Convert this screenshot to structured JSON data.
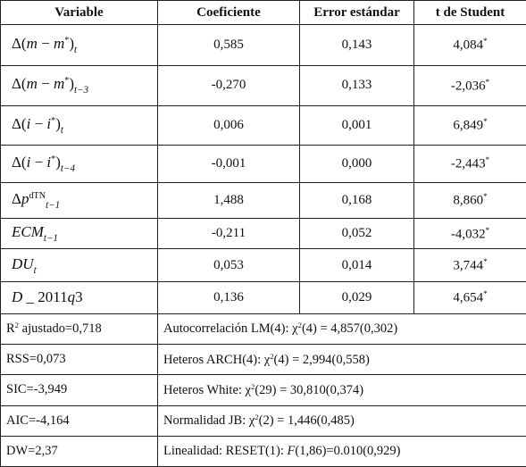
{
  "table": {
    "header": [
      "Variable",
      "Coeficiente",
      "Error estándar",
      "t de Student"
    ],
    "rows": [
      {
        "variable": [
          {
            "t": "Δ("
          },
          {
            "i": "m"
          },
          {
            "t": " − "
          },
          {
            "i": "m"
          },
          {
            "sup": "*"
          },
          {
            "t": ")"
          },
          {
            "sub": "t"
          }
        ],
        "coef": "0,585",
        "se": "0,143",
        "t": "4,084",
        "mark": "*"
      },
      {
        "variable": [
          {
            "t": "Δ("
          },
          {
            "i": "m"
          },
          {
            "t": " − "
          },
          {
            "i": "m"
          },
          {
            "sup": "*"
          },
          {
            "t": ")"
          },
          {
            "sub": "t−3"
          }
        ],
        "coef": "-0,270",
        "se": "0,133",
        "t": "-2,036",
        "mark": "*"
      },
      {
        "variable": [
          {
            "t": "Δ("
          },
          {
            "i": "i"
          },
          {
            "t": " − "
          },
          {
            "i": "i"
          },
          {
            "sup": "*"
          },
          {
            "t": ")"
          },
          {
            "sub": "t"
          }
        ],
        "coef": "0,006",
        "se": "0,001",
        "t": "6,849",
        "mark": "*"
      },
      {
        "variable": [
          {
            "t": "Δ("
          },
          {
            "i": "i"
          },
          {
            "t": " − "
          },
          {
            "i": "i"
          },
          {
            "sup": "*"
          },
          {
            "t": ")"
          },
          {
            "sub": "t−4"
          }
        ],
        "coef": "-0,001",
        "se": "0,000",
        "t": "-2,443",
        "mark": "*"
      },
      {
        "variable": [
          {
            "t": "Δ"
          },
          {
            "i": "p"
          },
          {
            "sup": "dTN"
          },
          {
            "sub": "t−1"
          }
        ],
        "coef": "1,488",
        "se": "0,168",
        "t": "8,860",
        "mark": "*"
      },
      {
        "variable": [
          {
            "i": "ECM"
          },
          {
            "sub": "t−1"
          }
        ],
        "coef": "-0,211",
        "se": "0,052",
        "t": "-4,032",
        "mark": "*"
      },
      {
        "variable": [
          {
            "i": "DU"
          },
          {
            "sub": "t"
          }
        ],
        "coef": "0,053",
        "se": "0,014",
        "t": "3,744",
        "mark": "*"
      },
      {
        "variable": [
          {
            "i": "D"
          },
          {
            "t": " _ 2011"
          },
          {
            "i": "q"
          },
          {
            "t": "3"
          }
        ],
        "coef": "0,136",
        "se": "0,029",
        "t": "4,654",
        "mark": "*"
      }
    ],
    "stats": [
      {
        "left": [
          {
            "t": "R"
          },
          {
            "sup": "2"
          },
          {
            "t": " ajustado=0,718"
          }
        ],
        "right": [
          {
            "t": "Autocorrelación LM(4):  χ"
          },
          {
            "sup": "2"
          },
          {
            "t": "(4) = 4,857(0,302)"
          }
        ]
      },
      {
        "left": [
          {
            "t": "RSS=0,073"
          }
        ],
        "right": [
          {
            "t": "Heteros ARCH(4): χ"
          },
          {
            "sup": "2"
          },
          {
            "t": "(4) = 2,994(0,558)"
          }
        ]
      },
      {
        "left": [
          {
            "t": "SIC=-3,949"
          }
        ],
        "right": [
          {
            "t": "Heteros White: χ"
          },
          {
            "sup": "2"
          },
          {
            "t": "(29) = 30,810(0,374)"
          }
        ]
      },
      {
        "left": [
          {
            "t": "AIC=-4,164"
          }
        ],
        "right": [
          {
            "t": "Normalidad JB: χ"
          },
          {
            "sup": "2"
          },
          {
            "t": "(2) = 1,446(0,485)"
          }
        ]
      },
      {
        "left": [
          {
            "t": "DW=2,37"
          }
        ],
        "right": [
          {
            "t": "Linealidad: RESET(1): "
          },
          {
            "i": "F"
          },
          {
            "t": "(1,86)=0.010(0,929)"
          }
        ]
      }
    ]
  }
}
